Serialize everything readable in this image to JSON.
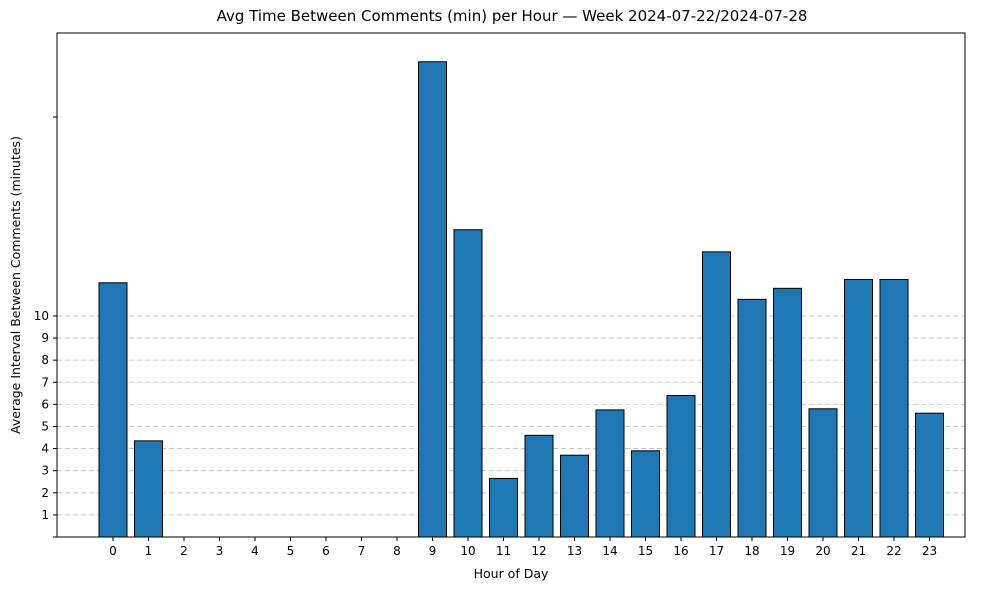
{
  "chart_data": {
    "type": "bar",
    "title": "Avg Time Between Comments (min) per Hour — Week 2024-07-22/2024-07-28",
    "xlabel": "Hour of Day",
    "ylabel": "Average Interval Between Comments (minutes)",
    "categories": [
      "0",
      "1",
      "2",
      "3",
      "4",
      "5",
      "6",
      "7",
      "8",
      "9",
      "10",
      "11",
      "12",
      "13",
      "14",
      "15",
      "16",
      "17",
      "18",
      "19",
      "20",
      "21",
      "22",
      "23"
    ],
    "values": [
      11.5,
      4.35,
      0,
      0,
      0,
      0,
      0,
      0,
      0,
      21.5,
      13.9,
      2.65,
      4.6,
      3.7,
      5.75,
      3.9,
      6.4,
      12.9,
      10.75,
      11.25,
      5.8,
      11.65,
      11.65,
      5.6
    ],
    "ylim": [
      0,
      22.8
    ],
    "yticks": [
      0,
      1,
      2,
      3,
      4,
      5,
      6,
      7,
      8,
      9,
      10,
      19
    ],
    "ytick_labels": [
      "",
      "1",
      "2",
      "3",
      "4",
      "5",
      "6",
      "7",
      "8",
      "9",
      "10",
      ""
    ],
    "grid_yticks": [
      1,
      2,
      3,
      4,
      5,
      6,
      7,
      8,
      9,
      10
    ],
    "grid": "y-dashed",
    "bar_color": "#1f77b4",
    "edge_color": "#000000"
  }
}
